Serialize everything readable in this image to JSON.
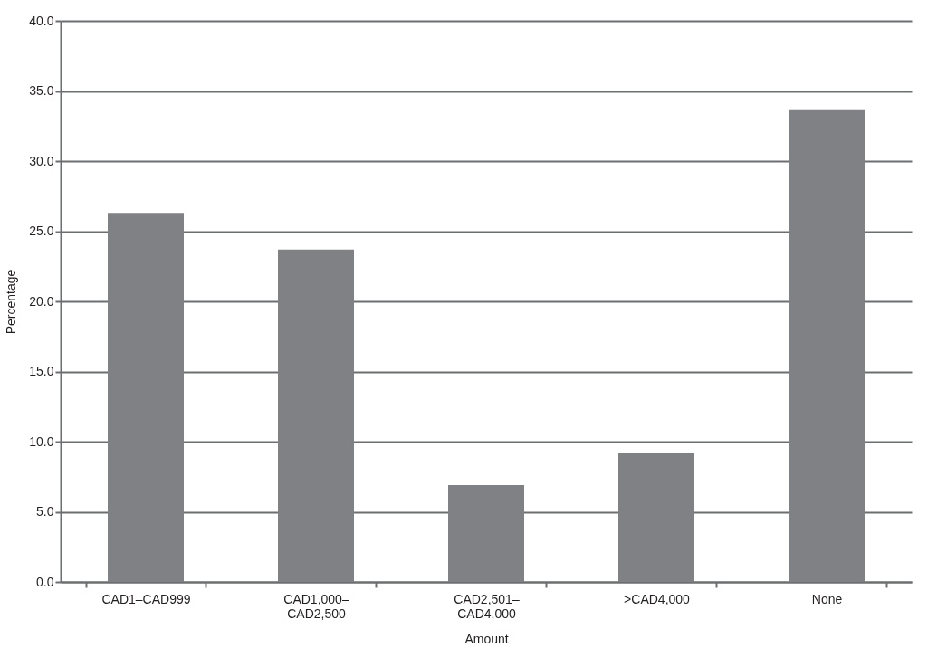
{
  "chart_data": {
    "type": "bar",
    "xlabel": "Amount",
    "ylabel": "Percentage",
    "categories": [
      "CAD1–CAD999",
      "CAD1,000–CAD2,500",
      "CAD2,501–CAD4,000",
      ">CAD4,000",
      "None"
    ],
    "values": [
      26.3,
      23.7,
      6.9,
      9.2,
      33.7
    ],
    "color": "#808184",
    "ylim": [
      0,
      40
    ],
    "yticks": [
      {
        "value": 0,
        "label": "0.0"
      },
      {
        "value": 5,
        "label": "5.0"
      },
      {
        "value": 10,
        "label": "10.0"
      },
      {
        "value": 15,
        "label": "15.0"
      },
      {
        "value": 20,
        "label": "20.0"
      },
      {
        "value": 25,
        "label": "25.0"
      },
      {
        "value": 30,
        "label": "30.0"
      },
      {
        "value": 35,
        "label": "35.0"
      },
      {
        "value": 40,
        "label": "40.0"
      }
    ],
    "grid": "y"
  }
}
